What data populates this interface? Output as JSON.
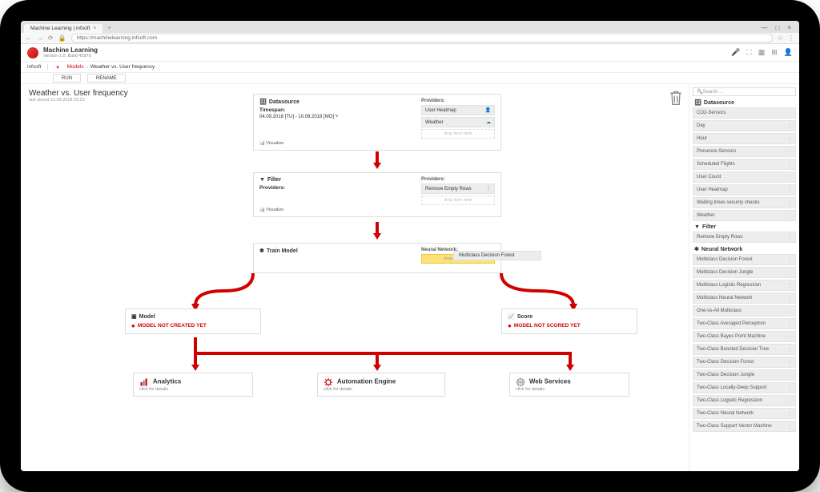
{
  "colors": {
    "accent": "#d10000",
    "chip_bg": "#eceded",
    "drop_active": "#fde27a",
    "border": "#dddddd"
  },
  "browser": {
    "tab_title": "Machine Learning | infsoft",
    "url": "https://machinelearning.infsoft.com",
    "win_min": "—",
    "win_max": "□",
    "win_close": "×"
  },
  "app": {
    "title": "Machine Learning",
    "subtitle": "Version 1.0, Build 42970",
    "breadcrumb_root": "infsoft",
    "breadcrumb_models": "Models",
    "breadcrumb_sep": "›",
    "breadcrumb_current": "Weather vs. User frequency",
    "btn_run": "RUN",
    "btn_rename": "RENAME"
  },
  "model": {
    "title": "Weather vs. User frequency",
    "subtitle": "last stored 12.09.2018 03:23"
  },
  "labels": {
    "providers": "Providers:",
    "neural_network": "Neural Network:",
    "visualize": "Visualize",
    "drop_here": "drop item here",
    "timespan": "Timespan:",
    "click_details": "click for details"
  },
  "nodes": {
    "datasource": {
      "title": "Datasource",
      "timespan_value": "04.09.2018 [TU] - 10.09.2018 [MO]",
      "providers": [
        "User Heatmap",
        "Weather"
      ]
    },
    "filter": {
      "title": "Filter",
      "providers": [
        "Remove Empty Rows"
      ]
    },
    "train": {
      "title": "Train Model",
      "selected_nn": "Multiclass Decision Forest"
    },
    "model_result": {
      "title": "Model",
      "warning": "MODEL NOT CREATED YET"
    },
    "score": {
      "title": "Score",
      "warning": "MODEL NOT SCORED YET"
    },
    "analytics": {
      "title": "Analytics"
    },
    "automation": {
      "title": "Automation Engine"
    },
    "webservices": {
      "title": "Web Services"
    }
  },
  "sidebar": {
    "search_placeholder": "Search ...",
    "sections": [
      {
        "title": "Datasource",
        "items": [
          "CO2-Sensors",
          "Day",
          "Hour",
          "Presence-Sensors",
          "Scheduled Flights",
          "User Count",
          "User Heatmap",
          "Waiting times security checks",
          "Weather"
        ]
      },
      {
        "title": "Filter",
        "items": [
          "Remove Empty Rows"
        ]
      },
      {
        "title": "Neural  Network",
        "items": [
          "Multiclass Decision Forest",
          "Multiclass Decision Jungle",
          "Multiclass Logistic Regression",
          "Multiclass Neural Network",
          "One-vs-All Multiclass",
          "Two-Class Averaged Perceptron",
          "Two-Class Bayes Point Machine",
          "Two-Class Boosted Decision Tree",
          "Two-Class Decision Forest",
          "Two-Class Decision Jungle",
          "Two-Class Locally-Deep Support",
          "Two-Class Logistic Regression",
          "Two-Class Neural Network",
          "Two-Class Support Vector Machine"
        ]
      }
    ]
  }
}
